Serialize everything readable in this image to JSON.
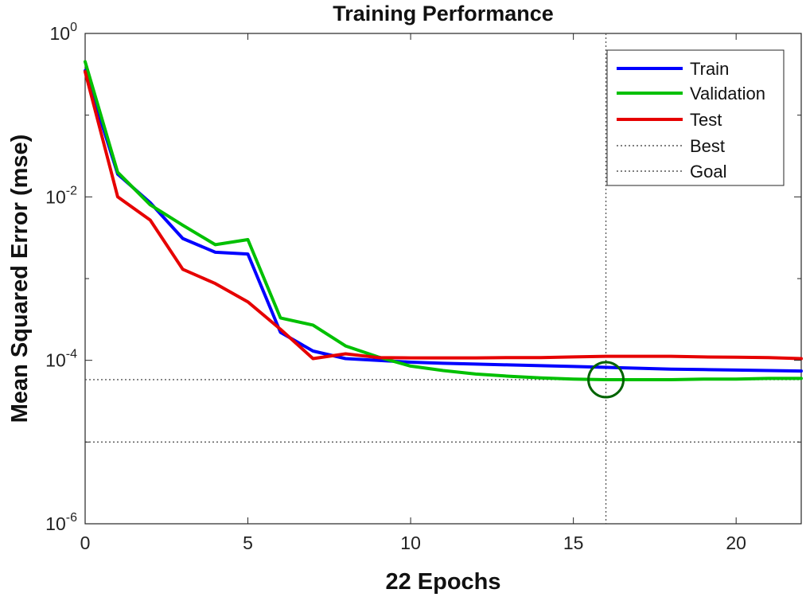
{
  "chart_data": {
    "type": "line",
    "title": "Training Performance",
    "xlabel": "22 Epochs",
    "ylabel": "Mean Squared Error  (mse)",
    "xlim": [
      0,
      22
    ],
    "ylim_log10": [
      -6,
      0
    ],
    "y_scale": "log",
    "xticks": [
      0,
      5,
      10,
      15,
      20
    ],
    "yticks": [
      {
        "base": "10",
        "exp": "0",
        "value": 1
      },
      {
        "base": "10",
        "exp": "-2",
        "value": 0.01
      },
      {
        "base": "10",
        "exp": "-4",
        "value": 0.0001
      },
      {
        "base": "10",
        "exp": "-6",
        "value": 1e-06
      }
    ],
    "x": [
      0,
      1,
      2,
      3,
      4,
      5,
      6,
      7,
      8,
      9,
      10,
      11,
      12,
      13,
      14,
      15,
      16,
      17,
      18,
      19,
      20,
      21,
      22
    ],
    "series": [
      {
        "name": "Train",
        "color": "#0000ff",
        "values": [
          0.35,
          0.019,
          0.0085,
          0.0031,
          0.0021,
          0.002,
          0.00022,
          0.00013,
          0.000105,
          0.0001,
          9.5e-05,
          9.2e-05,
          9e-05,
          8.8e-05,
          8.6e-05,
          8.4e-05,
          8.2e-05,
          8e-05,
          7.8e-05,
          7.7e-05,
          7.6e-05,
          7.5e-05,
          7.4e-05
        ]
      },
      {
        "name": "Validation",
        "color": "#00c000",
        "values": [
          0.45,
          0.02,
          0.008,
          0.0045,
          0.0026,
          0.003,
          0.00033,
          0.00027,
          0.00015,
          0.00011,
          8.5e-05,
          7.5e-05,
          6.8e-05,
          6.4e-05,
          6.1e-05,
          5.9e-05,
          5.8e-05,
          5.8e-05,
          5.8e-05,
          5.9e-05,
          5.9e-05,
          6e-05,
          6e-05
        ]
      },
      {
        "name": "Test",
        "color": "#e60000",
        "values": [
          0.34,
          0.01,
          0.0052,
          0.0013,
          0.00087,
          0.00052,
          0.00024,
          0.000105,
          0.00012,
          0.000108,
          0.000107,
          0.000107,
          0.000107,
          0.000108,
          0.000108,
          0.00011,
          0.000112,
          0.000112,
          0.000112,
          0.00011,
          0.000109,
          0.000108,
          0.000105
        ]
      }
    ],
    "reference_lines": {
      "best": {
        "name": "Best",
        "epoch": 16,
        "value": 5.8e-05,
        "color": "#555555"
      },
      "goal": {
        "name": "Goal",
        "value": 1e-05,
        "color": "#555555"
      }
    },
    "best_marker": {
      "epoch": 16,
      "value": 5.8e-05,
      "color": "#006400"
    },
    "legend": {
      "position": "top-right",
      "entries": [
        "Train",
        "Validation",
        "Test",
        "Best",
        "Goal"
      ]
    }
  }
}
